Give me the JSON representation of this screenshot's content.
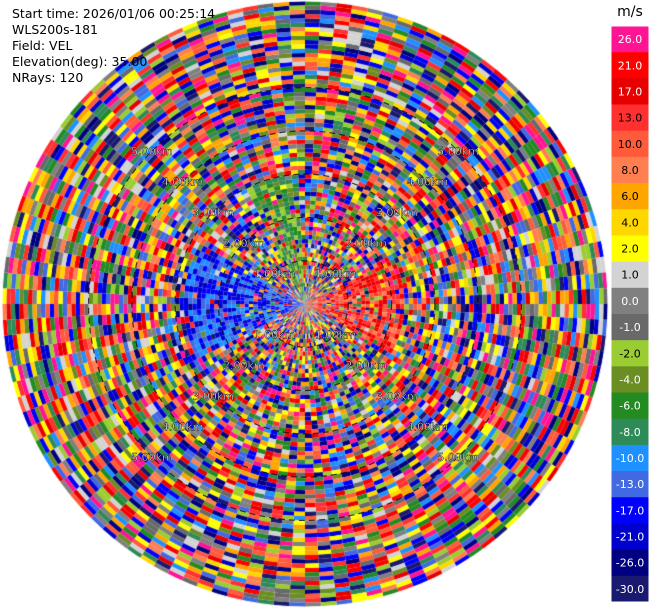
{
  "info": {
    "start_time": "Start time: 2026/01/06 00:25:14",
    "device": "WLS200s-181",
    "field": "Field: VEL",
    "elevation": "Elevation(deg): 35.00",
    "nrays": "NRays: 120"
  },
  "colorbar": {
    "unit": "m/s",
    "bins": [
      {
        "label": "26.0",
        "color": "#ff1493"
      },
      {
        "label": "21.0",
        "color": "#ff0000"
      },
      {
        "label": "17.0",
        "color": "#e60000"
      },
      {
        "label": "13.0",
        "color": "#ff3030"
      },
      {
        "label": "10.0",
        "color": "#ff5a3a"
      },
      {
        "label": "8.0",
        "color": "#ff7f50"
      },
      {
        "label": "6.0",
        "color": "#ffa500"
      },
      {
        "label": "4.0",
        "color": "#ffd700"
      },
      {
        "label": "2.0",
        "color": "#ffff00"
      },
      {
        "label": "1.0",
        "color": "#d3d3d3"
      },
      {
        "label": "0.0",
        "color": "#808080"
      },
      {
        "label": "-1.0",
        "color": "#696969"
      },
      {
        "label": "-2.0",
        "color": "#9acd32"
      },
      {
        "label": "-4.0",
        "color": "#6b8e23"
      },
      {
        "label": "-6.0",
        "color": "#228b22"
      },
      {
        "label": "-8.0",
        "color": "#2e8b57"
      },
      {
        "label": "-10.0",
        "color": "#1e90ff"
      },
      {
        "label": "-13.0",
        "color": "#4169e1"
      },
      {
        "label": "-17.0",
        "color": "#0000ff"
      },
      {
        "label": "-21.0",
        "color": "#0000cd"
      },
      {
        "label": "-26.0",
        "color": "#000080"
      },
      {
        "label": "-30.0",
        "color": "#191970"
      }
    ]
  },
  "chart_data": {
    "type": "heatmap",
    "projection": "polar (PPI scan)",
    "field": "VEL",
    "unit": "m/s",
    "elevation_deg": 35.0,
    "n_rays": 120,
    "color_range": [
      -30.0,
      26.0
    ],
    "range_rings": [
      {
        "label": "1.00km",
        "value": 1.0
      },
      {
        "label": "2.00km",
        "value": 2.0
      },
      {
        "label": "3.00km",
        "value": 3.0
      },
      {
        "label": "4.00km",
        "value": 4.0
      },
      {
        "label": "5.00km",
        "value": 5.0
      }
    ],
    "max_range_km": 7.0,
    "range_gate_km": 0.1,
    "ring_label_directions": [
      "NW",
      "NE",
      "SW",
      "SE"
    ],
    "notes_regions": {
      "west_near_field": "negative velocity (-17 to -10 m/s, blue)",
      "east_near_field": "positive velocity (10 to 21 m/s, red/orange)",
      "north_northwest_near_field": "negative velocity (-8 to -2 m/s, green)"
    }
  }
}
